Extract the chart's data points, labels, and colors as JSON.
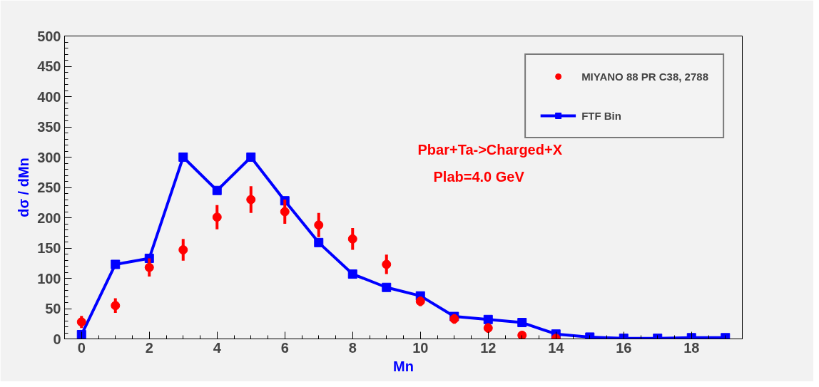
{
  "chart_data": {
    "type": "scatter",
    "xlabel": "Mn",
    "ylabel": "dσ / dMn",
    "annotations": [
      "Pbar+Ta->Charged+X",
      "Plab=4.0 GeV"
    ],
    "xlim": [
      -0.5,
      19.5
    ],
    "ylim": [
      0,
      500
    ],
    "xticks": [
      0,
      2,
      4,
      6,
      8,
      10,
      12,
      14,
      16,
      18
    ],
    "yticks": [
      0,
      50,
      100,
      150,
      200,
      250,
      300,
      350,
      400,
      450,
      500
    ],
    "legend": "top right",
    "series": [
      {
        "name": "MIYANO 88 PR C38, 2788",
        "marker": "circle",
        "color": "#ff0000",
        "x": [
          0,
          1,
          2,
          3,
          4,
          5,
          6,
          7,
          8,
          9,
          10,
          11,
          12,
          13,
          14
        ],
        "values": [
          28,
          55,
          118,
          147,
          201,
          230,
          210,
          188,
          165,
          123,
          62,
          33,
          18,
          6,
          1
        ],
        "errors": [
          10,
          12,
          15,
          18,
          20,
          22,
          20,
          20,
          18,
          16,
          8,
          8,
          8,
          null,
          null
        ]
      },
      {
        "name": "FTF Bin",
        "type": "line",
        "marker": "square",
        "color": "#0000ff",
        "x": [
          0,
          1,
          2,
          3,
          4,
          5,
          6,
          7,
          8,
          9,
          10,
          11,
          12,
          13,
          14,
          15,
          16,
          17,
          18,
          19
        ],
        "values": [
          7,
          123,
          133,
          300,
          245,
          300,
          228,
          159,
          107,
          85,
          71,
          37,
          32,
          27,
          8,
          3,
          1,
          1,
          2,
          2
        ]
      }
    ]
  }
}
